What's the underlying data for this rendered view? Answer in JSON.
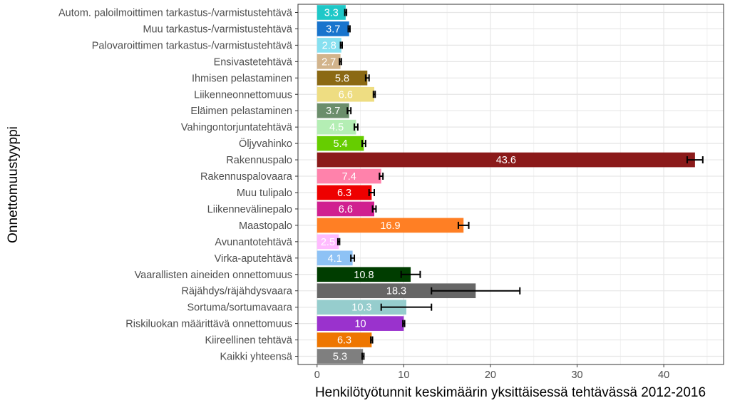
{
  "chart_data": {
    "type": "bar",
    "orientation": "horizontal",
    "title": "",
    "xlabel": "Henkilötyötunnit keskimäärin yksittäisessä tehtävässä 2012-2016",
    "ylabel": "Onnettomuustyyppi",
    "xlim": [
      -2.2,
      46.9
    ],
    "xticks": [
      0,
      10,
      20,
      30,
      40
    ],
    "grid": true,
    "legend": "none",
    "categories": [
      "Autom. paloilmoittimen tarkastus-/varmistustehtävä",
      "Muu tarkastus-/varmistustehtävä",
      "Palovaroittimen tarkastus-/varmistustehtävä",
      "Ensivastetehtävä",
      "Ihmisen pelastaminen",
      "Liikenneonnettomuus",
      "Eläimen pelastaminen",
      "Vahingontorjuntatehtävä",
      "Öljyvahinko",
      "Rakennuspalo",
      "Rakennuspalovaara",
      "Muu tulipalo",
      "Liikennevälinepalo",
      "Maastopalo",
      "Avunantotehtävä",
      "Virka-aputehtävä",
      "Vaarallisten aineiden onnettomuus",
      "Räjähdys/räjähdysvaara",
      "Sortuma/sortumavaara",
      "Riskiluokan määrittävä onnettomuus",
      "Kiireellinen tehtävä",
      "Kaikki yhteensä"
    ],
    "values": [
      3.3,
      3.7,
      2.8,
      2.7,
      5.8,
      6.6,
      3.7,
      4.5,
      5.4,
      43.6,
      7.4,
      6.3,
      6.6,
      16.9,
      2.5,
      4.1,
      10.8,
      18.3,
      10.3,
      10,
      6.3,
      5.3
    ],
    "labels": [
      "3.3",
      "3.7",
      "2.8",
      "2.7",
      "5.8",
      "6.6",
      "3.7",
      "4.5",
      "5.4",
      "43.6",
      "7.4",
      "6.3",
      "6.6",
      "16.9",
      "2.5",
      "4.1",
      "10.8",
      "18.3",
      "10.3",
      "10",
      "6.3",
      "5.3"
    ],
    "error_low": [
      3.2,
      3.6,
      2.7,
      2.6,
      5.6,
      6.5,
      3.5,
      4.3,
      5.2,
      42.7,
      7.2,
      6.0,
      6.4,
      16.3,
      2.4,
      3.9,
      9.7,
      13.2,
      7.4,
      9.9,
      6.2,
      5.2
    ],
    "error_high": [
      3.4,
      3.8,
      2.9,
      2.8,
      6.0,
      6.7,
      3.9,
      4.7,
      5.6,
      44.5,
      7.6,
      6.6,
      6.8,
      17.5,
      2.6,
      4.3,
      11.9,
      23.4,
      13.2,
      10.1,
      6.4,
      5.4
    ],
    "colors": [
      "#1ec8c8",
      "#1874cd",
      "#87e0f0",
      "#d2b48c",
      "#8b6914",
      "#eedd82",
      "#6b8e6b",
      "#b4eeb4",
      "#66cd00",
      "#8b1a1a",
      "#ff82ab",
      "#ee0000",
      "#d02090",
      "#ff7f24",
      "#ffbbff",
      "#8ec2f5",
      "#003d00",
      "#666666",
      "#96cdcd",
      "#9a32cd",
      "#ee7600",
      "#7f7f7f"
    ]
  }
}
